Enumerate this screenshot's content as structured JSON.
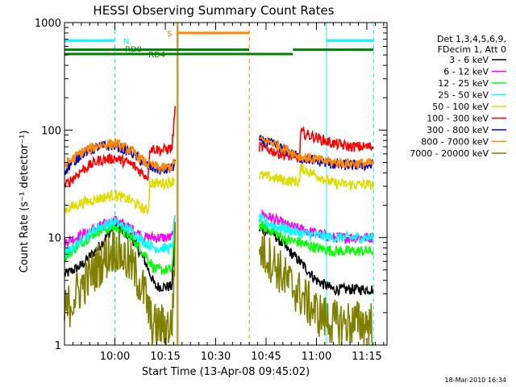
{
  "chart_data": {
    "type": "line",
    "title": "HESSI Observing Summary Count Rates",
    "xlabel": "Start Time (13-Apr-08 09:45:02)",
    "ylabel": "Count Rate (s⁻¹ detector⁻¹)",
    "yscale": "log",
    "ylim": [
      1,
      1000
    ],
    "xlim_minutes": [
      0,
      96
    ],
    "x_unit": "minutes after 09:45:02",
    "y_ticks": [
      "1",
      "10",
      "100",
      "1000"
    ],
    "x_ticks": [
      {
        "label": "10:00",
        "minutes": 15
      },
      {
        "label": "10:15",
        "minutes": 30
      },
      {
        "label": "10:30",
        "minutes": 45
      },
      {
        "label": "10:45",
        "minutes": 60
      },
      {
        "label": "11:00",
        "minutes": 75
      },
      {
        "label": "11:15",
        "minutes": 90
      }
    ],
    "legend_header": [
      "Det 1,3,4,5,6,9,",
      "FDecim 1, Att 0"
    ],
    "legend_placement": "right",
    "series": [
      {
        "name": "3 - 6 keV",
        "color": "#000000",
        "seg1": [
          [
            0,
            4.5
          ],
          [
            5,
            5.5
          ],
          [
            10,
            8
          ],
          [
            15,
            13
          ],
          [
            20,
            10
          ],
          [
            24,
            6
          ],
          [
            27,
            3.5
          ],
          [
            32,
            3.5
          ],
          [
            33,
            13
          ]
        ],
        "seg2": [
          [
            58,
            12
          ],
          [
            62,
            11
          ],
          [
            66,
            8
          ],
          [
            70,
            6
          ],
          [
            75,
            4
          ],
          [
            80,
            3.3
          ],
          [
            85,
            3.3
          ],
          [
            92,
            3.3
          ]
        ]
      },
      {
        "name": "6 - 12 keV",
        "color": "#ff00ff",
        "seg1": [
          [
            0,
            9
          ],
          [
            5,
            10.5
          ],
          [
            10,
            12.5
          ],
          [
            15,
            14.5
          ],
          [
            20,
            12
          ],
          [
            24,
            10
          ],
          [
            27,
            10
          ],
          [
            32,
            10
          ],
          [
            33,
            15
          ]
        ],
        "seg2": [
          [
            58,
            17
          ],
          [
            62,
            15
          ],
          [
            66,
            13
          ],
          [
            70,
            12
          ],
          [
            75,
            11
          ],
          [
            80,
            10
          ],
          [
            85,
            10
          ],
          [
            92,
            10
          ]
        ]
      },
      {
        "name": "12 - 25 keV",
        "color": "#00ff00",
        "seg1": [
          [
            0,
            6.5
          ],
          [
            5,
            9
          ],
          [
            10,
            11.5
          ],
          [
            15,
            12.5
          ],
          [
            20,
            10
          ],
          [
            24,
            7
          ],
          [
            27,
            5
          ],
          [
            32,
            5
          ],
          [
            33,
            13
          ]
        ],
        "seg2": [
          [
            58,
            13
          ],
          [
            62,
            11.5
          ],
          [
            66,
            9.5
          ],
          [
            70,
            9
          ],
          [
            75,
            8
          ],
          [
            80,
            7.5
          ],
          [
            85,
            7.5
          ],
          [
            92,
            7.5
          ]
        ]
      },
      {
        "name": "25 - 50 keV",
        "color": "#00ffff",
        "seg1": [
          [
            0,
            7
          ],
          [
            5,
            9.5
          ],
          [
            10,
            12.5
          ],
          [
            15,
            14
          ],
          [
            20,
            11.5
          ],
          [
            24,
            9
          ],
          [
            27,
            8
          ],
          [
            32,
            8
          ],
          [
            33,
            16
          ]
        ],
        "seg2": [
          [
            58,
            15
          ],
          [
            62,
            13
          ],
          [
            66,
            12
          ],
          [
            70,
            11
          ],
          [
            75,
            10.5
          ],
          [
            80,
            10
          ],
          [
            85,
            10
          ],
          [
            92,
            10
          ]
        ]
      },
      {
        "name": "50 - 100 keV",
        "color": "#dddd00",
        "seg1": [
          [
            0,
            18
          ],
          [
            5,
            21
          ],
          [
            10,
            23
          ],
          [
            15,
            25
          ],
          [
            20,
            22
          ],
          [
            24,
            18
          ],
          [
            25,
            18
          ],
          [
            25.3,
            32
          ],
          [
            29,
            32
          ],
          [
            32,
            33
          ],
          [
            33,
            36
          ]
        ],
        "seg2": [
          [
            58,
            38
          ],
          [
            62,
            36
          ],
          [
            66,
            34
          ],
          [
            70,
            33
          ],
          [
            70.3,
            45
          ],
          [
            75,
            38
          ],
          [
            80,
            32
          ],
          [
            85,
            31
          ],
          [
            92,
            31
          ]
        ]
      },
      {
        "name": "100 - 300 keV",
        "color": "#ff0000",
        "seg1": [
          [
            0,
            30
          ],
          [
            5,
            42
          ],
          [
            10,
            52
          ],
          [
            15,
            55
          ],
          [
            20,
            48
          ],
          [
            24,
            38
          ],
          [
            25,
            37
          ],
          [
            25.3,
            68
          ],
          [
            29,
            65
          ],
          [
            32,
            68
          ],
          [
            33,
            165
          ]
        ],
        "seg2": [
          [
            58,
            70
          ],
          [
            62,
            64
          ],
          [
            66,
            58
          ],
          [
            70,
            55
          ],
          [
            70.3,
            95
          ],
          [
            75,
            85
          ],
          [
            80,
            75
          ],
          [
            85,
            70
          ],
          [
            92,
            70
          ]
        ]
      },
      {
        "name": "300 - 800 keV",
        "color": "#0000cc",
        "seg1": [
          [
            0,
            42
          ],
          [
            5,
            60
          ],
          [
            10,
            70
          ],
          [
            15,
            72
          ],
          [
            20,
            62
          ],
          [
            24,
            48
          ],
          [
            25,
            46
          ],
          [
            29,
            42
          ],
          [
            32,
            44
          ],
          [
            33,
            50
          ]
        ],
        "seg2": [
          [
            58,
            80
          ],
          [
            62,
            74
          ],
          [
            66,
            64
          ],
          [
            70,
            55
          ],
          [
            75,
            52
          ],
          [
            80,
            48
          ],
          [
            85,
            47
          ],
          [
            92,
            47
          ]
        ]
      },
      {
        "name": "800 - 7000 keV",
        "color": "#ff8800",
        "seg1": [
          [
            0,
            47
          ],
          [
            5,
            62
          ],
          [
            10,
            72
          ],
          [
            15,
            75
          ],
          [
            20,
            64
          ],
          [
            24,
            50
          ],
          [
            25,
            48
          ],
          [
            29,
            44
          ],
          [
            32,
            46
          ],
          [
            33,
            52
          ]
        ],
        "seg2": [
          [
            58,
            82
          ],
          [
            62,
            76
          ],
          [
            66,
            66
          ],
          [
            70,
            57
          ],
          [
            75,
            53
          ],
          [
            80,
            50
          ],
          [
            85,
            49
          ],
          [
            92,
            49
          ]
        ]
      },
      {
        "name": "7000 - 20000 keV",
        "color": "#808000",
        "seg1": [
          [
            0,
            2
          ],
          [
            5,
            3.5
          ],
          [
            10,
            5.5
          ],
          [
            15,
            8
          ],
          [
            20,
            5.5
          ],
          [
            24,
            3
          ],
          [
            26,
            1.5
          ],
          [
            32,
            1.5
          ],
          [
            33,
            10
          ]
        ],
        "seg2": [
          [
            58,
            8
          ],
          [
            62,
            6
          ],
          [
            66,
            4
          ],
          [
            70,
            3
          ],
          [
            75,
            2
          ],
          [
            80,
            1.6
          ],
          [
            85,
            1.6
          ],
          [
            92,
            1.6
          ]
        ]
      }
    ],
    "bars": [
      {
        "label": "N",
        "color": "#00ffff",
        "y": 680,
        "spans": [
          [
            0,
            15
          ]
        ],
        "spans2": [
          [
            78,
            92
          ]
        ]
      },
      {
        "label": "S",
        "color": "#ff8800",
        "y": 800,
        "spans": [
          [
            33.5,
            55
          ]
        ],
        "spans2": []
      },
      {
        "label": "RD0",
        "color": "#008000",
        "y": 560,
        "spans": [
          [
            0,
            55
          ]
        ],
        "spans2": [
          [
            68,
            92
          ]
        ]
      },
      {
        "label": "RD4",
        "color": "#008000",
        "y": 510,
        "spans": [
          [
            0,
            55
          ]
        ],
        "spans2": [
          [
            55,
            68
          ]
        ]
      }
    ],
    "vlines": [
      {
        "minutes": 15,
        "color": "#00ffff",
        "dash": true
      },
      {
        "minutes": 33.5,
        "color": "#ff8800",
        "dash": false
      },
      {
        "minutes": 33.8,
        "color": "#808000",
        "dash": false
      },
      {
        "minutes": 55,
        "color": "#ff8800",
        "dash": true
      },
      {
        "minutes": 78,
        "color": "#00ffff",
        "dash": false
      },
      {
        "minutes": 92,
        "color": "#00ffff",
        "dash": true
      }
    ]
  },
  "footer_timestamp": "18-Mar-2010 16:34"
}
